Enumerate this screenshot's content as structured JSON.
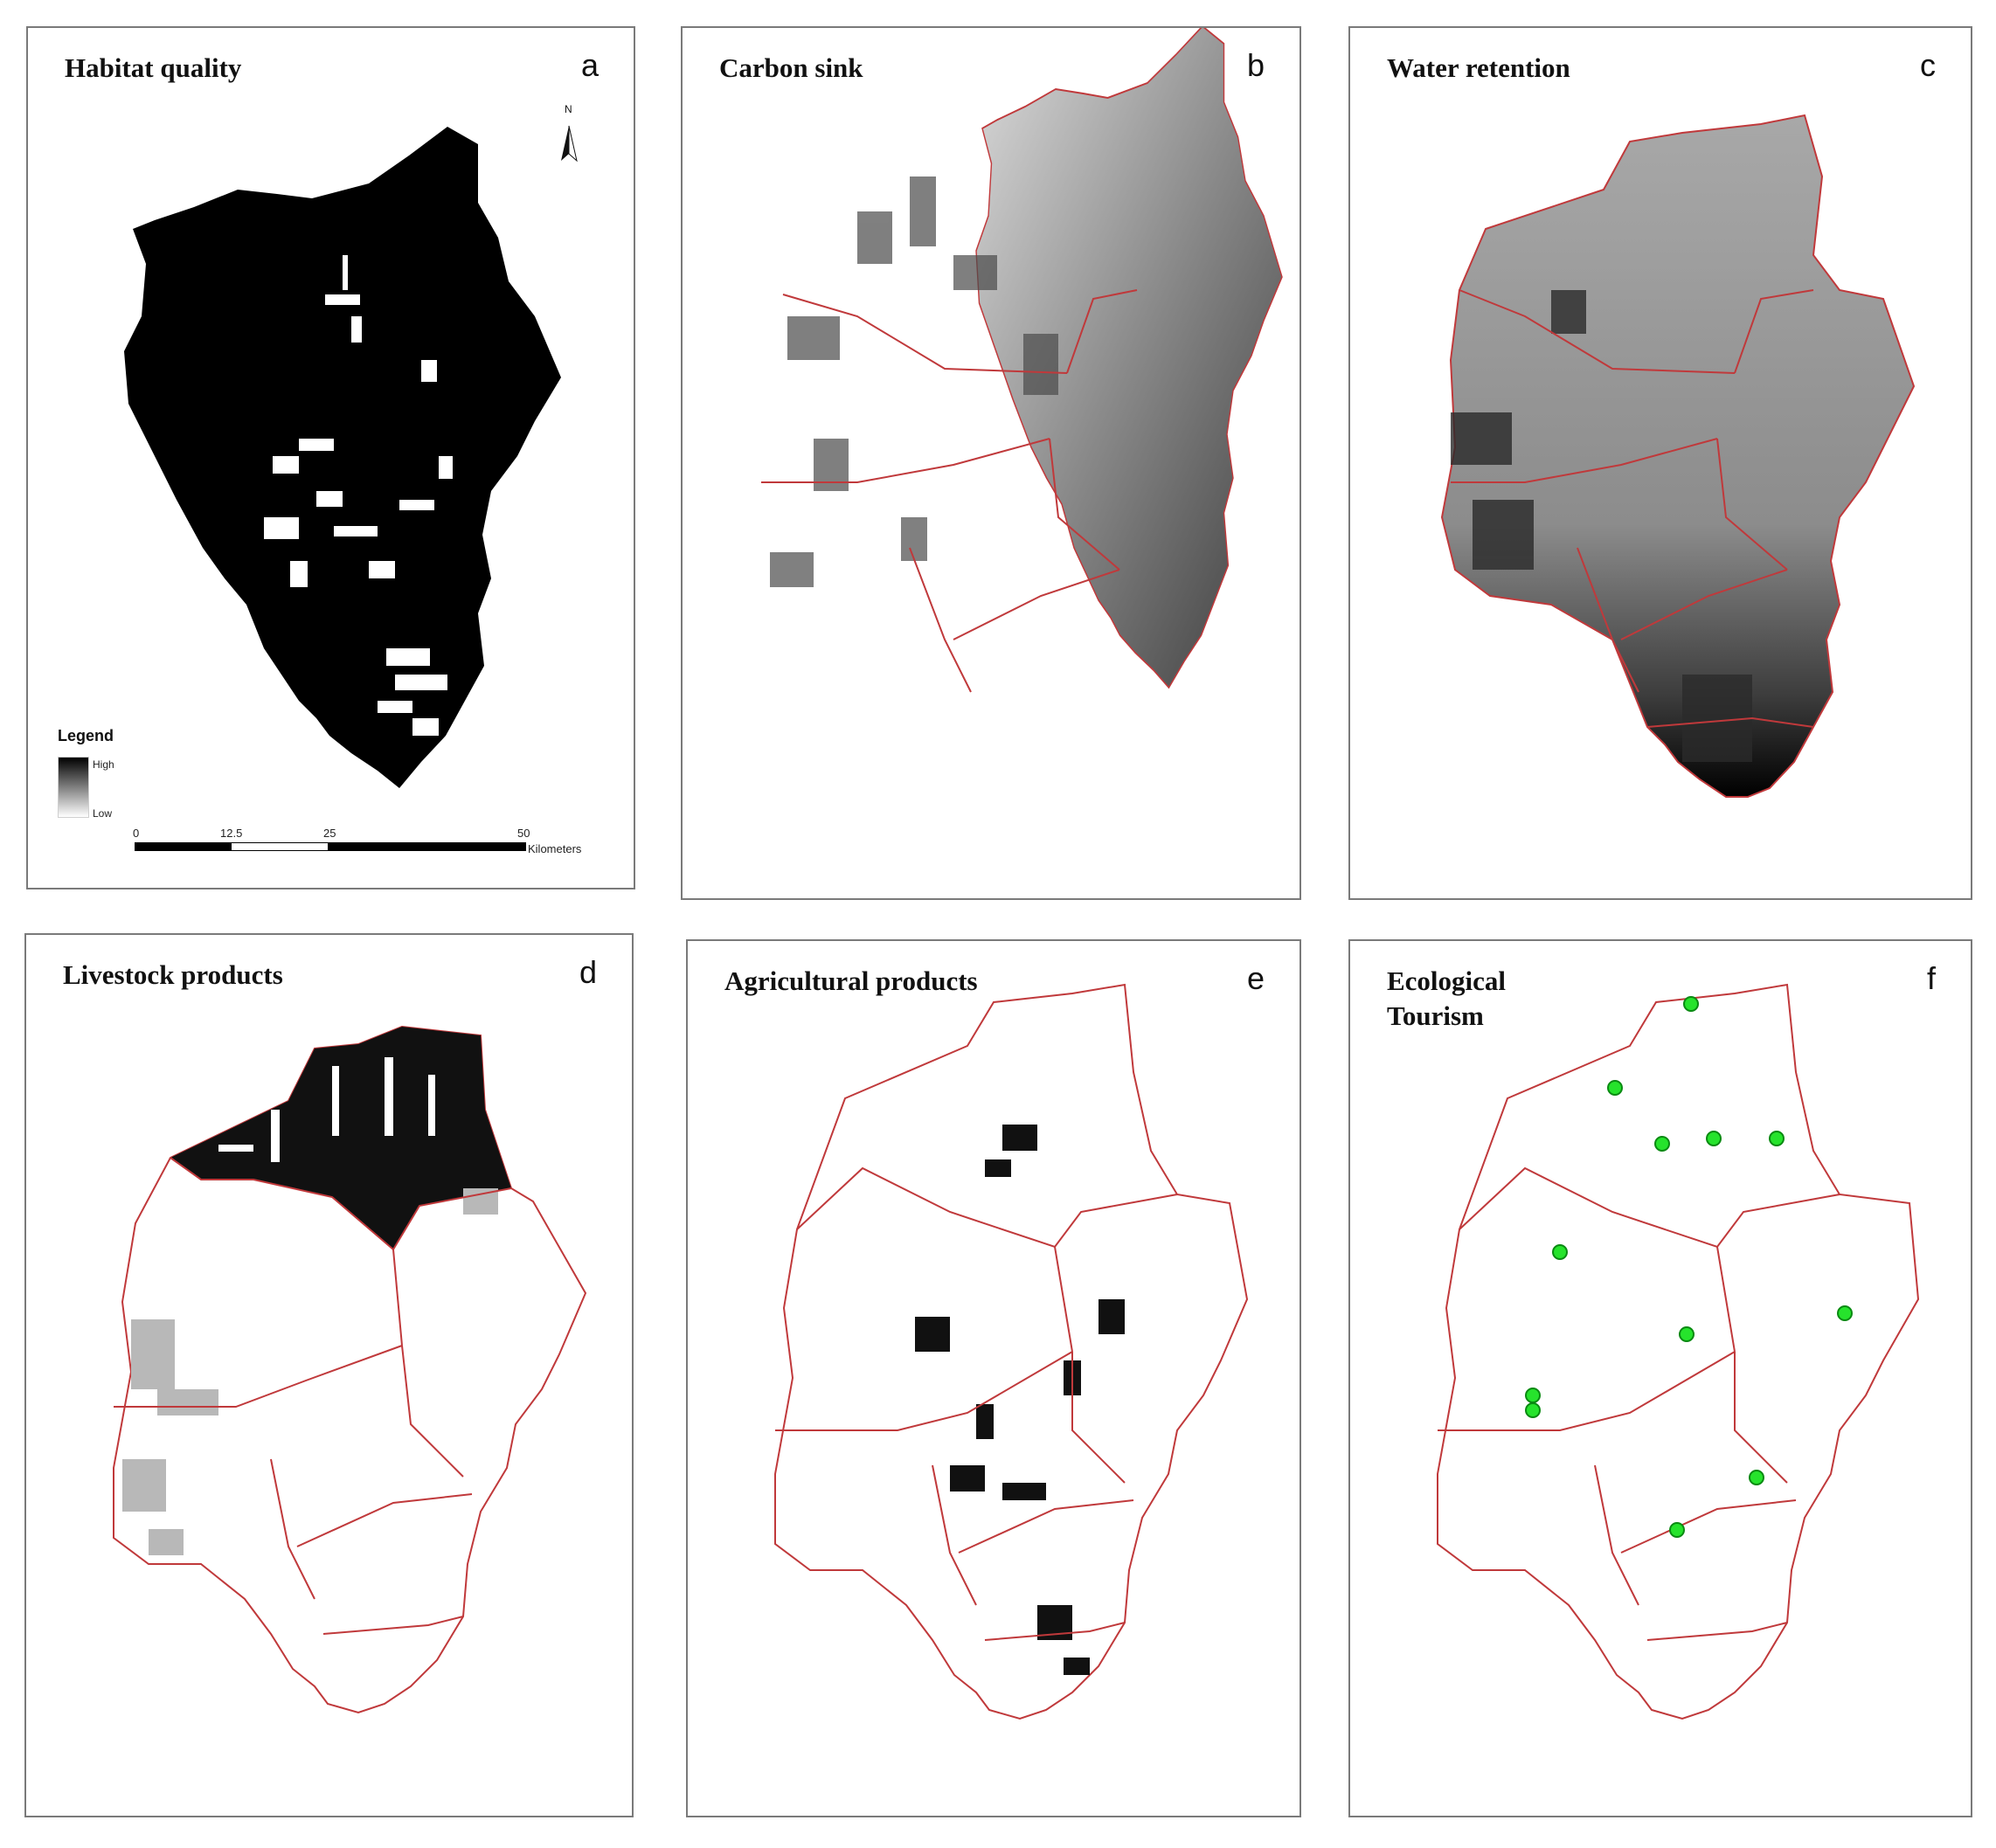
{
  "colors": {
    "boundary": "#c0393b",
    "frame": "#7a7a7a",
    "tourism_point": "#26e32c",
    "tourism_point_edge": "#0a8a12"
  },
  "panels": [
    {
      "letter": "a",
      "title": "Habitat quality"
    },
    {
      "letter": "b",
      "title": "Carbon sink"
    },
    {
      "letter": "c",
      "title": "Water retention"
    },
    {
      "letter": "d",
      "title": "Livestock products"
    },
    {
      "letter": "e",
      "title": "Agricultural products"
    },
    {
      "letter": "f",
      "title": "Ecological\nTourism"
    }
  ],
  "legend": {
    "title": "Legend",
    "high": "High",
    "low": "Low"
  },
  "scale_bar": {
    "ticks": [
      "0",
      "12.5",
      "25",
      "50"
    ],
    "unit": "Kilometers"
  },
  "north_arrow": {
    "label": "N",
    "icon": "north-arrow-icon"
  }
}
